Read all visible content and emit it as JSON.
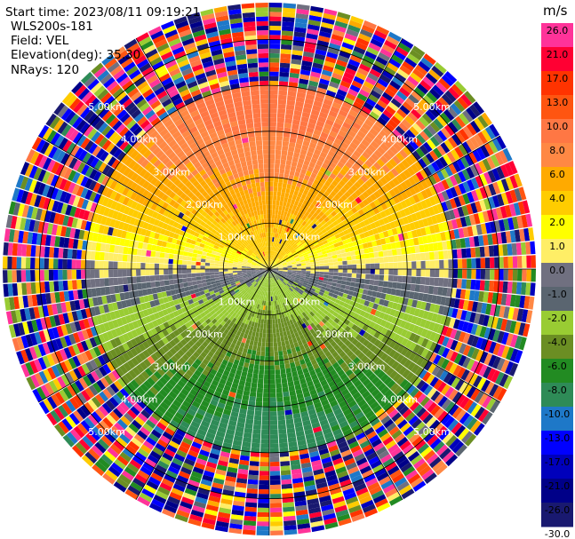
{
  "header": {
    "start_time": "Start time: 2023/08/11 09:19:21",
    "instrument": "WLS200s-181",
    "field": "Field: VEL",
    "elevation": "Elevation(deg): 35.30",
    "nrays": "NRays: 120"
  },
  "chart_data": {
    "type": "polar-ppi",
    "title": "",
    "field": "VEL",
    "units": "m/s",
    "n_rays": 120,
    "elevation_deg": 35.3,
    "max_range_km": 5.8,
    "range_rings_km": [
      1.0,
      2.0,
      3.0,
      4.0,
      5.0
    ],
    "ring_labels": [
      "1.00km",
      "2.00km",
      "3.00km",
      "4.00km",
      "5.00km"
    ],
    "spokes_deg": [
      0,
      30,
      60,
      90,
      120,
      150,
      180,
      210,
      240,
      270,
      300,
      330
    ],
    "wind_model": {
      "speed_ms": 9.0,
      "toward_bearing_deg": 0,
      "noise_beyond_km": 4.0
    },
    "colorbar": {
      "ticks": [
        "26.0",
        "21.0",
        "17.0",
        "13.0",
        "10.0",
        "8.0",
        "6.0",
        "4.0",
        "2.0",
        "1.0",
        "0.0",
        "-1.0",
        "-2.0",
        "-4.0",
        "-6.0",
        "-8.0",
        "-10.0",
        "-13.0",
        "-17.0",
        "-21.0",
        "-26.0",
        "-30.0"
      ],
      "bands": [
        {
          "color": "#ff3399"
        },
        {
          "color": "#ff0033"
        },
        {
          "color": "#ff3300"
        },
        {
          "color": "#ff5511"
        },
        {
          "color": "#ff7744"
        },
        {
          "color": "#ff8844"
        },
        {
          "color": "#ffaa00"
        },
        {
          "color": "#ffcc00"
        },
        {
          "color": "#ffff00"
        },
        {
          "color": "#ffee66"
        },
        {
          "color": "#707080"
        },
        {
          "color": "#5a6570"
        },
        {
          "color": "#99cc33"
        },
        {
          "color": "#6b8e23"
        },
        {
          "color": "#228b22"
        },
        {
          "color": "#2e8b57"
        },
        {
          "color": "#1e78c8"
        },
        {
          "color": "#0000ff"
        },
        {
          "color": "#0000bb"
        },
        {
          "color": "#000088"
        },
        {
          "color": "#191970"
        }
      ]
    }
  }
}
